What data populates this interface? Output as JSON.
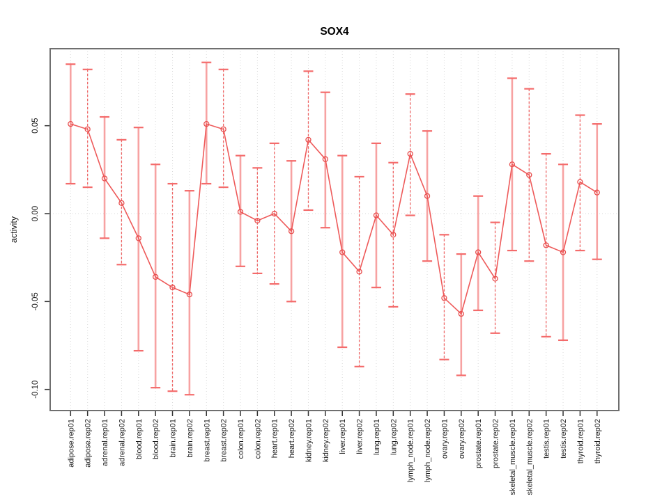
{
  "page": {
    "title": "SOX4"
  },
  "chart_data": {
    "type": "line",
    "title": "SOX4",
    "xlabel": "",
    "ylabel": "activity",
    "legend_position": "none",
    "grid": "vertical dotted gridline at every category; dotted horizontal line at y=0",
    "marker": "open-circle",
    "error_bars": true,
    "ylim": [
      -0.112,
      0.094
    ],
    "yticks": [
      0.05,
      0.0,
      -0.05,
      -0.1
    ],
    "ytick_labels": [
      "0.05",
      "0.00",
      "-0.05",
      "-0.10"
    ],
    "categories": [
      "adipose.rep01",
      "adipose.rep02",
      "adrenal.rep01",
      "adrenal.rep02",
      "blood.rep01",
      "blood.rep02",
      "brain.rep01",
      "brain.rep02",
      "breast.rep01",
      "breast.rep02",
      "colon.rep01",
      "colon.rep02",
      "heart.rep01",
      "heart.rep02",
      "kidney.rep01",
      "kidney.rep02",
      "liver.rep01",
      "liver.rep02",
      "lung.rep01",
      "lung.rep02",
      "lymph_node.rep01",
      "lymph_node.rep02",
      "ovary.rep01",
      "ovary.rep02",
      "prostate.rep01",
      "prostate.rep02",
      "skeletal_muscle.rep01",
      "skeletal_muscle.rep02",
      "testis.rep01",
      "testis.rep02",
      "thyroid.rep01",
      "thyroid.rep02"
    ],
    "series": [
      {
        "name": "activity",
        "values": [
          0.051,
          0.048,
          0.02,
          0.006,
          -0.014,
          -0.036,
          -0.042,
          -0.046,
          0.051,
          0.048,
          0.001,
          -0.004,
          0.0,
          -0.01,
          0.042,
          0.031,
          -0.022,
          -0.033,
          -0.001,
          -0.012,
          0.034,
          0.01,
          -0.048,
          -0.057,
          -0.022,
          -0.037,
          0.028,
          0.022,
          -0.018,
          -0.022,
          0.018,
          0.012
        ],
        "ci_low": [
          0.017,
          0.015,
          -0.014,
          -0.029,
          -0.078,
          -0.099,
          -0.101,
          -0.103,
          0.017,
          0.015,
          -0.03,
          -0.034,
          -0.04,
          -0.05,
          0.002,
          -0.008,
          -0.076,
          -0.087,
          -0.042,
          -0.053,
          -0.001,
          -0.027,
          -0.083,
          -0.092,
          -0.055,
          -0.068,
          -0.021,
          -0.027,
          -0.07,
          -0.072,
          -0.021,
          -0.026
        ],
        "ci_high": [
          0.085,
          0.082,
          0.055,
          0.042,
          0.049,
          0.028,
          0.017,
          0.013,
          0.086,
          0.082,
          0.033,
          0.026,
          0.04,
          0.03,
          0.081,
          0.069,
          0.033,
          0.021,
          0.04,
          0.029,
          0.068,
          0.047,
          -0.012,
          -0.023,
          0.01,
          -0.005,
          0.077,
          0.071,
          0.034,
          0.028,
          0.056,
          0.051
        ]
      }
    ],
    "error_bar_styles": [
      "solid",
      "dashed",
      "solid",
      "dashed",
      "solid",
      "solid",
      "dashed",
      "solid",
      "solid",
      "dashed",
      "solid",
      "dashed",
      "dashed",
      "solid",
      "dashed",
      "solid",
      "solid",
      "dashed",
      "solid",
      "dashed",
      "dashed",
      "solid",
      "dashed",
      "solid",
      "solid",
      "dashed",
      "solid",
      "dashed",
      "dashed",
      "solid",
      "dashed",
      "solid"
    ],
    "colors": {
      "line": "#ee5a5a",
      "marker": "#e84d4d",
      "cap": "#f46b6b",
      "bar_solid": "#f7a2a2",
      "bar_dashed": "#ee6666",
      "grid": "#d8d8d8",
      "frame": "#6f6f6f",
      "tick": "#333333",
      "text": "#1a1a1a",
      "title": "#000000"
    }
  }
}
